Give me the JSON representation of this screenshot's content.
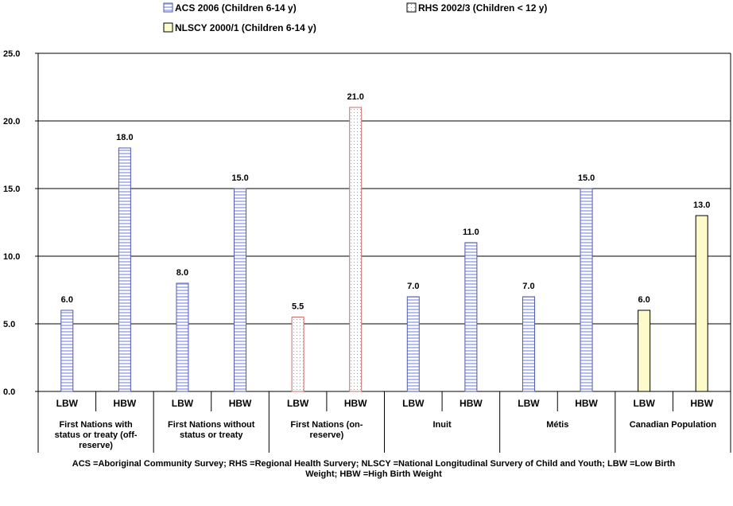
{
  "chart_data": {
    "type": "bar",
    "ylim": [
      0,
      25
    ],
    "yticks": [
      "0.0",
      "5.0",
      "10.0",
      "15.0",
      "20.0",
      "25.0"
    ],
    "grid": true,
    "legend_position": "top",
    "series": [
      {
        "name": "ACS 2006 (Children 6-14 y)",
        "color": "#c8cdf2",
        "stroke": "#4f5aa8",
        "pattern": "horizontal-lines"
      },
      {
        "name": "RHS 2002/3 (Children < 12 y)",
        "color": "#ffffff",
        "stroke": "#cc6b6b",
        "pattern": "dots"
      },
      {
        "name": "NLSCY 2000/1 (Children 6-14 y)",
        "color": "#fdfbc9",
        "stroke": "#000000",
        "pattern": "solid"
      }
    ],
    "groups": [
      {
        "label": "First Nations with status or treaty (off-reserve)",
        "label_lines": [
          "First Nations with",
          "status or treaty (off-",
          "reserve)"
        ],
        "bars": [
          {
            "category": "LBW",
            "value": 6.0,
            "value_label": "6.0",
            "series": 0
          },
          {
            "category": "HBW",
            "value": 18.0,
            "value_label": "18.0",
            "series": 0
          }
        ]
      },
      {
        "label": "First Nations without status or treaty",
        "label_lines": [
          "First Nations without",
          "status or treaty"
        ],
        "bars": [
          {
            "category": "LBW",
            "value": 8.0,
            "value_label": "8.0",
            "series": 0
          },
          {
            "category": "HBW",
            "value": 15.0,
            "value_label": "15.0",
            "series": 0
          }
        ]
      },
      {
        "label": "First Nations (on-reserve)",
        "label_lines": [
          "First Nations (on-",
          "reserve)"
        ],
        "bars": [
          {
            "category": "LBW",
            "value": 5.5,
            "value_label": "5.5",
            "series": 1
          },
          {
            "category": "HBW",
            "value": 21.0,
            "value_label": "21.0",
            "series": 1
          }
        ]
      },
      {
        "label": "Inuit",
        "label_lines": [
          "Inuit"
        ],
        "bars": [
          {
            "category": "LBW",
            "value": 7.0,
            "value_label": "7.0",
            "series": 0
          },
          {
            "category": "HBW",
            "value": 11.0,
            "value_label": "11.0",
            "series": 0
          }
        ]
      },
      {
        "label": "Métis",
        "label_lines": [
          "Métis"
        ],
        "bars": [
          {
            "category": "LBW",
            "value": 7.0,
            "value_label": "7.0",
            "series": 0
          },
          {
            "category": "HBW",
            "value": 15.0,
            "value_label": "15.0",
            "series": 0
          }
        ]
      },
      {
        "label": "Canadian Population",
        "label_lines": [
          "Canadian Population"
        ],
        "bars": [
          {
            "category": "LBW",
            "value": 6.0,
            "value_label": "6.0",
            "series": 2
          },
          {
            "category": "HBW",
            "value": 13.0,
            "value_label": "13.0",
            "series": 2
          }
        ]
      }
    ],
    "footnote_lines": [
      "ACS =Aboriginal Community Survey; RHS =Regional Health Survery; NLSCY =National Longitudinal Survery of Child and Youth; LBW =Low Birth",
      "Weight; HBW =High Birth Weight"
    ]
  }
}
